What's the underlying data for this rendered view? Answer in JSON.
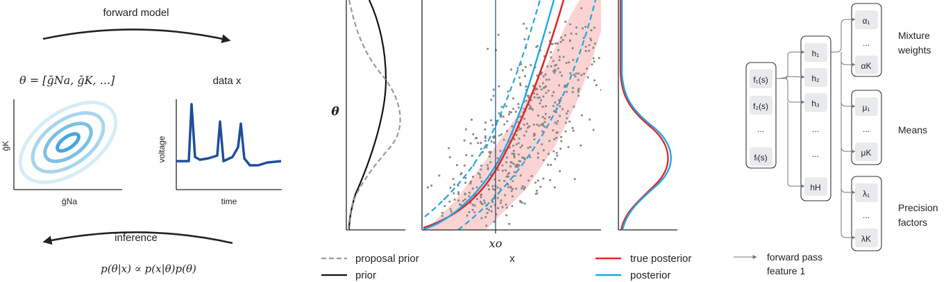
{
  "panel_a": {
    "forward_label": "forward model",
    "theta_eq": "θ = [ḡNa, ḡK, ...]",
    "data_label": "data x",
    "ylabel_left": "ḡK",
    "xlabel_left": "ḡNa",
    "ylabel_right": "voltage",
    "xlabel_right": "time",
    "inference_label": "inference",
    "bayes_eq": "p(θ|x) ∝ p(x|θ)p(θ)"
  },
  "panel_b": {
    "theta_label": "θ",
    "x0_label": "xo",
    "x_label": "x",
    "legend": {
      "proposal_prior": "proposal prior",
      "prior": "prior",
      "true_posterior": "true posterior",
      "posterior": "posterior"
    },
    "colors": {
      "true_posterior": "#e0282a",
      "posterior": "#1ea7e1",
      "band": "#fbd3d3",
      "scatter": "#888888",
      "prior": "#111111",
      "proposal": "#999999"
    }
  },
  "panel_c": {
    "inputs": [
      "f₁(s)",
      "f₂(s)",
      "...",
      "fₗ(s)"
    ],
    "hidden": [
      "h₁",
      "h₂",
      "h₃",
      "...",
      "...",
      "hH"
    ],
    "alphas": [
      "α₁",
      "...",
      "αK"
    ],
    "mus": [
      "μ₁",
      "...",
      "μK"
    ],
    "lambdas": [
      "λ₁",
      "...",
      "λK"
    ],
    "group_labels": {
      "mixture_1": "Mixture",
      "mixture_2": "weights",
      "means": "Means",
      "precision_1": "Precision",
      "precision_2": "factors"
    },
    "legend_1": "forward pass",
    "legend_2": "feature 1"
  }
}
